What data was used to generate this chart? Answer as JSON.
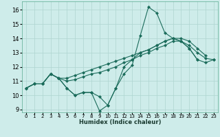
{
  "xlabel": "Humidex (Indice chaleur)",
  "background_color": "#ceecea",
  "grid_color": "#aed4d0",
  "line_color": "#1a6b5a",
  "xlim": [
    -0.5,
    23.5
  ],
  "ylim": [
    8.8,
    16.6
  ],
  "yticks": [
    9,
    10,
    11,
    12,
    13,
    14,
    15,
    16
  ],
  "xticks": [
    0,
    1,
    2,
    3,
    4,
    5,
    6,
    7,
    8,
    9,
    10,
    11,
    12,
    13,
    14,
    15,
    16,
    17,
    18,
    19,
    20,
    21,
    22,
    23
  ],
  "series": {
    "spiky": [
      10.5,
      10.8,
      10.8,
      11.5,
      11.2,
      10.5,
      10.0,
      10.2,
      10.2,
      8.9,
      9.3,
      10.5,
      11.5,
      12.1,
      14.2,
      16.2,
      15.8,
      14.4,
      14.0,
      13.8,
      13.3,
      12.5
    ],
    "mid_low": [
      10.5,
      10.8,
      10.8,
      11.5,
      11.2,
      10.5,
      10.0,
      10.2,
      10.2,
      9.9,
      9.3,
      10.5,
      12.0,
      12.5,
      13.0,
      13.2,
      13.5,
      13.8,
      14.0,
      13.8,
      13.3,
      12.5,
      12.3,
      12.5
    ],
    "smooth_upper": [
      10.5,
      10.8,
      10.8,
      11.5,
      11.2,
      11.2,
      11.4,
      11.6,
      11.8,
      12.0,
      12.2,
      12.4,
      12.6,
      12.8,
      13.0,
      13.2,
      13.5,
      13.8,
      14.0,
      14.0,
      13.8,
      13.3,
      12.8
    ],
    "smooth_lower": [
      10.5,
      10.8,
      10.8,
      11.5,
      11.2,
      11.0,
      11.1,
      11.3,
      11.5,
      11.6,
      11.8,
      12.0,
      12.3,
      12.5,
      12.8,
      13.0,
      13.3,
      13.5,
      13.8,
      13.8,
      13.5,
      13.0,
      12.6,
      12.5
    ]
  }
}
